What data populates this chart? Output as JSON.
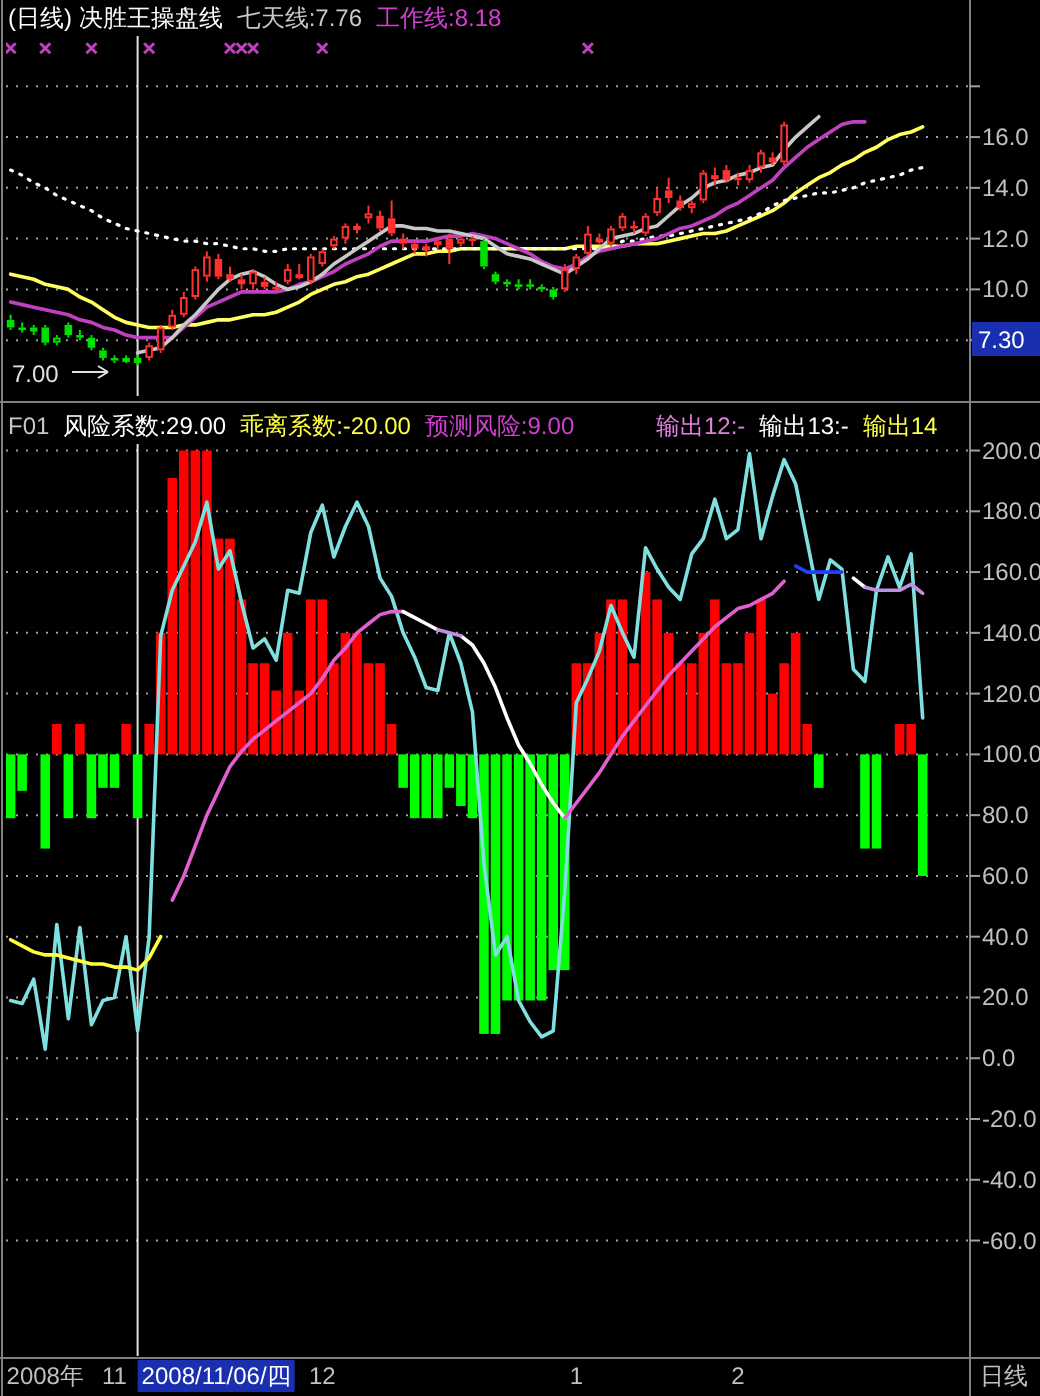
{
  "chart_data": [
    {
      "type": "candlestick",
      "title": "(日线) 决胜王操盘线",
      "annotations": [
        "七天线:7.76",
        "工作线:8.18",
        "7.00",
        "7.30"
      ],
      "categories": [
        null,
        null,
        null,
        null,
        null,
        null,
        null,
        null,
        null,
        null,
        null,
        null,
        null,
        null,
        null,
        null,
        null,
        null,
        null,
        null,
        null,
        null,
        null,
        null,
        null,
        null,
        null,
        null,
        null,
        null,
        null,
        null,
        null,
        null,
        null,
        null,
        null,
        null,
        null,
        null,
        null,
        null,
        null,
        null,
        null,
        null,
        null,
        null,
        null,
        null,
        null,
        null,
        null,
        null,
        null,
        null,
        null,
        null,
        null,
        null,
        null,
        null,
        null,
        null,
        null,
        null,
        null,
        null,
        null,
        null,
        null,
        null,
        null,
        null,
        null,
        null,
        null,
        null,
        null,
        null
      ],
      "ohlc": [
        [
          8.8,
          9.0,
          8.4,
          8.5
        ],
        [
          8.5,
          8.7,
          8.3,
          8.4
        ],
        [
          8.4,
          8.6,
          8.2,
          8.5
        ],
        [
          8.5,
          8.6,
          7.8,
          7.9
        ],
        [
          7.9,
          8.2,
          7.8,
          8.1
        ],
        [
          8.6,
          8.7,
          8.1,
          8.2
        ],
        [
          8.2,
          8.4,
          8.0,
          8.1
        ],
        [
          8.1,
          8.2,
          7.6,
          7.7
        ],
        [
          7.6,
          7.7,
          7.2,
          7.3
        ],
        [
          7.3,
          7.4,
          7.1,
          7.2
        ],
        [
          7.2,
          7.4,
          7.1,
          7.3
        ],
        [
          7.3,
          7.4,
          7.0,
          7.1
        ],
        [
          7.3,
          7.9,
          7.2,
          7.8
        ],
        [
          7.6,
          8.6,
          7.5,
          8.5
        ],
        [
          8.5,
          9.2,
          8.4,
          9.0
        ],
        [
          9.0,
          9.9,
          8.9,
          9.7
        ],
        [
          9.7,
          10.9,
          9.6,
          10.8
        ],
        [
          10.5,
          11.5,
          10.3,
          11.3
        ],
        [
          11.2,
          11.4,
          10.4,
          10.5
        ],
        [
          10.6,
          10.9,
          10.3,
          10.4
        ],
        [
          10.4,
          10.6,
          10.0,
          10.2
        ],
        [
          10.2,
          10.8,
          10.0,
          10.7
        ],
        [
          10.3,
          10.5,
          10.0,
          10.1
        ],
        [
          10.1,
          10.3,
          9.9,
          10.0
        ],
        [
          10.3,
          11.0,
          10.2,
          10.8
        ],
        [
          10.5,
          11.0,
          10.4,
          10.6
        ],
        [
          10.3,
          11.4,
          10.2,
          11.3
        ],
        [
          11.0,
          11.6,
          10.9,
          11.5
        ],
        [
          11.7,
          12.1,
          11.6,
          12.0
        ],
        [
          12.0,
          12.6,
          11.8,
          12.5
        ],
        [
          12.4,
          12.6,
          12.2,
          12.5
        ],
        [
          12.8,
          13.3,
          12.6,
          13.0
        ],
        [
          12.9,
          13.1,
          12.3,
          12.4
        ],
        [
          12.8,
          13.5,
          12.1,
          12.2
        ],
        [
          12.0,
          12.2,
          11.6,
          11.8
        ],
        [
          11.8,
          11.9,
          11.4,
          11.6
        ],
        [
          11.6,
          11.8,
          11.3,
          11.7
        ],
        [
          11.8,
          12.0,
          11.6,
          11.9
        ],
        [
          12.0,
          12.2,
          11.0,
          11.6
        ],
        [
          11.8,
          12.1,
          11.7,
          12.0
        ],
        [
          12.0,
          12.1,
          11.7,
          11.9
        ],
        [
          11.9,
          12.0,
          10.8,
          10.9
        ],
        [
          10.6,
          10.7,
          10.2,
          10.3
        ],
        [
          10.3,
          10.4,
          10.1,
          10.2
        ],
        [
          10.2,
          10.4,
          10.0,
          10.1
        ],
        [
          10.2,
          10.4,
          10.0,
          10.1
        ],
        [
          10.1,
          10.2,
          9.9,
          10.0
        ],
        [
          10.0,
          10.1,
          9.6,
          9.7
        ],
        [
          10.0,
          11.0,
          9.9,
          10.8
        ],
        [
          10.8,
          11.4,
          10.6,
          11.3
        ],
        [
          11.4,
          12.5,
          11.3,
          12.2
        ],
        [
          11.9,
          12.2,
          11.8,
          12.0
        ],
        [
          11.8,
          12.5,
          11.7,
          12.4
        ],
        [
          12.4,
          13.0,
          12.3,
          12.9
        ],
        [
          12.5,
          12.7,
          12.2,
          12.4
        ],
        [
          12.2,
          13.0,
          12.1,
          12.9
        ],
        [
          13.0,
          14.0,
          12.9,
          13.6
        ],
        [
          13.9,
          14.4,
          13.4,
          13.6
        ],
        [
          13.5,
          13.7,
          13.1,
          13.2
        ],
        [
          13.2,
          13.5,
          13.0,
          13.4
        ],
        [
          13.5,
          14.7,
          13.4,
          14.6
        ],
        [
          14.4,
          14.8,
          14.1,
          14.5
        ],
        [
          14.7,
          14.9,
          14.2,
          14.3
        ],
        [
          14.4,
          14.6,
          14.1,
          14.3
        ],
        [
          14.3,
          14.9,
          14.2,
          14.7
        ],
        [
          14.8,
          15.5,
          14.6,
          15.4
        ],
        [
          15.2,
          15.4,
          14.9,
          15.0
        ],
        [
          15.0,
          16.6,
          14.9,
          16.5
        ],
        null,
        null,
        null,
        null,
        null,
        null,
        null,
        null,
        null,
        null,
        null,
        null
      ],
      "colors": [
        "#00e000",
        "#00e000",
        "#00e000",
        "#00e000",
        "#00e000",
        "#00e000",
        "#00e000",
        "#00e000",
        "#00e000",
        "#00e000",
        "#00e000",
        "#00e000",
        "#ff3030",
        "#ff3030",
        "#ff3030",
        "#ff3030",
        "#ff3030",
        "#ff3030",
        "#ff3030",
        "#ff3030",
        "#ff3030",
        "#ff3030",
        "#ff3030",
        "#ff3030",
        "#ff3030",
        "#ff3030",
        "#ff3030",
        "#ff3030",
        "#ff3030",
        "#ff3030",
        "#ff3030",
        "#ff3030",
        "#ff3030",
        "#ff3030",
        "#ff3030",
        "#ff3030",
        "#ff3030",
        "#ff3030",
        "#ff3030",
        "#ff3030",
        "#ff3030",
        "#00e000",
        "#00e000",
        "#00e000",
        "#00e000",
        "#00e000",
        "#00e000",
        "#00e000",
        "#ff3030",
        "#ff3030",
        "#ff3030",
        "#ff3030",
        "#ff3030",
        "#ff3030",
        "#ff3030",
        "#ff3030",
        "#ff3030",
        "#ff3030",
        "#ff3030",
        "#ff3030",
        "#ff3030",
        "#ff3030",
        "#ff3030",
        "#ff3030",
        "#ff3030",
        "#ff3030",
        "#ff3030",
        "#ff3030",
        null,
        null,
        null,
        null,
        null,
        null,
        null,
        null,
        null,
        null,
        null,
        null
      ],
      "series": [
        {
          "type": "line",
          "color": "#ffff60",
          "values": [
            10.6,
            10.5,
            10.4,
            10.2,
            10.1,
            10.0,
            9.7,
            9.5,
            9.2,
            8.9,
            8.7,
            8.6,
            8.5,
            8.5,
            8.5,
            8.6,
            8.6,
            8.7,
            8.8,
            8.8,
            8.9,
            9.0,
            9.0,
            9.1,
            9.3,
            9.5,
            9.8,
            10.0,
            10.2,
            10.3,
            10.5,
            10.6,
            10.8,
            11.0,
            11.2,
            11.4,
            11.4,
            11.5,
            11.5,
            11.6,
            11.6,
            11.6,
            11.6,
            11.6,
            11.6,
            11.6,
            11.6,
            11.6,
            11.6,
            11.7,
            11.7,
            11.7,
            11.7,
            11.7,
            11.8,
            11.8,
            11.8,
            11.9,
            12.0,
            12.1,
            12.2,
            12.2,
            12.3,
            12.5,
            12.7,
            12.9,
            13.1,
            13.4,
            13.8,
            14.1,
            14.4,
            14.6,
            14.9,
            15.1,
            15.4,
            15.6,
            15.9,
            16.1,
            16.2,
            16.4
          ]
        },
        {
          "type": "line",
          "color": "#ffffff",
          "line_style": "dotted",
          "values": [
            14.7,
            14.5,
            14.2,
            14.0,
            13.7,
            13.5,
            13.3,
            13.1,
            12.8,
            12.6,
            12.4,
            12.3,
            12.2,
            12.1,
            12.0,
            11.9,
            11.9,
            11.8,
            11.8,
            11.7,
            11.6,
            11.6,
            11.5,
            11.5,
            11.6,
            11.6,
            11.6,
            11.6,
            11.6,
            11.6,
            11.6,
            11.6,
            11.6,
            11.6,
            11.6,
            11.6,
            11.6,
            11.6,
            11.6,
            11.6,
            11.6,
            11.6,
            11.6,
            11.6,
            11.6,
            11.6,
            11.6,
            11.6,
            11.6,
            11.6,
            11.6,
            11.6,
            11.6,
            11.9,
            11.9,
            12.0,
            12.1,
            12.1,
            12.2,
            12.3,
            12.4,
            12.5,
            12.6,
            12.7,
            12.8,
            13.0,
            13.3,
            13.5,
            13.6,
            13.7,
            13.8,
            13.8,
            13.9,
            14.0,
            14.2,
            14.3,
            14.4,
            14.5,
            14.7,
            14.8
          ]
        },
        {
          "type": "line",
          "color": "#c040c0",
          "values": [
            9.5,
            9.4,
            9.3,
            9.2,
            9.1,
            9.0,
            8.8,
            8.7,
            8.5,
            8.4,
            8.2,
            8.1,
            8.1,
            8.1,
            8.1,
            8.5,
            8.9,
            9.3,
            9.5,
            9.7,
            9.9,
            9.9,
            9.9,
            9.9,
            10.0,
            10.2,
            10.3,
            10.5,
            10.7,
            11.0,
            11.2,
            11.4,
            11.7,
            11.9,
            11.9,
            11.9,
            11.9,
            12.0,
            12.1,
            12.1,
            12.2,
            12.1,
            12.0,
            11.8,
            11.6,
            11.4,
            11.1,
            10.9,
            10.8,
            11.0,
            11.3,
            11.5,
            11.6,
            11.7,
            11.8,
            11.9,
            12.0,
            12.2,
            12.4,
            12.5,
            12.7,
            12.9,
            13.2,
            13.4,
            13.7,
            14.0,
            14.3,
            14.8,
            15.2,
            15.6,
            15.9,
            16.2,
            16.5,
            16.6,
            16.6,
            null,
            null,
            null,
            null,
            null
          ]
        },
        {
          "type": "line",
          "color": "#c8c8c8",
          "values": [
            null,
            null,
            null,
            null,
            null,
            null,
            null,
            null,
            null,
            null,
            null,
            7.5,
            7.6,
            7.7,
            8.1,
            8.6,
            9.0,
            9.5,
            10.0,
            10.4,
            10.6,
            10.7,
            10.5,
            10.2,
            10.0,
            10.1,
            10.3,
            10.6,
            11.0,
            11.3,
            11.6,
            11.9,
            12.2,
            12.5,
            12.5,
            12.4,
            12.4,
            12.3,
            12.3,
            12.2,
            12.1,
            12.0,
            11.7,
            11.4,
            11.3,
            11.2,
            11.0,
            10.8,
            10.6,
            10.9,
            11.2,
            11.6,
            12.0,
            12.1,
            12.2,
            12.4,
            12.5,
            12.9,
            13.3,
            13.6,
            14.0,
            14.2,
            14.3,
            14.5,
            14.6,
            14.8,
            14.9,
            15.5,
            16.0,
            16.4,
            16.8,
            null,
            null,
            null,
            null,
            null,
            null,
            null,
            null,
            null
          ]
        },
        {
          "type": "scatter",
          "marker": "cross",
          "color": "#c040c0",
          "values": [
            19.5,
            null,
            null,
            19.5,
            null,
            null,
            null,
            19.5,
            null,
            null,
            null,
            null,
            19.5,
            null,
            null,
            null,
            null,
            null,
            null,
            19.5,
            19.5,
            19.5,
            null,
            null,
            null,
            null,
            null,
            19.5,
            null,
            null,
            null,
            null,
            null,
            null,
            null,
            null,
            null,
            null,
            null,
            null,
            null,
            null,
            null,
            null,
            null,
            null,
            null,
            null,
            null,
            null,
            19.5,
            null,
            null,
            null,
            null,
            null,
            null,
            null,
            null,
            null,
            null,
            null,
            null,
            null,
            null,
            null,
            null,
            null,
            null,
            null,
            null,
            null,
            null,
            null,
            null,
            null,
            null,
            null,
            null,
            null
          ]
        }
      ],
      "ylim": [
        5.8,
        21.4
      ],
      "yticks": [
        {
          "value": 8,
          "label": null
        },
        {
          "value": 10,
          "label": "10.0"
        },
        {
          "value": 12,
          "label": "12.0"
        },
        {
          "value": 14,
          "label": "14.0"
        },
        {
          "value": 16,
          "label": "16.0"
        },
        {
          "value": 18,
          "label": null
        }
      ],
      "grid": "y",
      "tick_labels": "y"
    },
    {
      "type": "bar",
      "annotations": [
        "F01",
        "风险系数:29.00",
        "乖离系数:-20.00",
        "预测风险:9.00",
        "输出12:-",
        "输出13:-",
        "输出14",
        "2008/11/06/四"
      ],
      "xlabel": "日线",
      "categories": [
        null,
        null,
        null,
        "2008年",
        null,
        null,
        null,
        null,
        null,
        "11",
        null,
        null,
        null,
        null,
        null,
        null,
        null,
        null,
        null,
        null,
        null,
        null,
        null,
        null,
        null,
        null,
        null,
        "12",
        null,
        null,
        null,
        null,
        null,
        null,
        null,
        null,
        null,
        null,
        null,
        null,
        null,
        null,
        null,
        null,
        null,
        null,
        null,
        null,
        null,
        "1",
        null,
        null,
        null,
        null,
        null,
        null,
        null,
        null,
        null,
        null,
        null,
        null,
        null,
        "2",
        null,
        null,
        null,
        null,
        null,
        null,
        null,
        null,
        null,
        null,
        null,
        null,
        null,
        null,
        null,
        null
      ],
      "values": [
        -21,
        -12,
        null,
        -31,
        10,
        -21,
        10,
        -21,
        -11,
        -11,
        10,
        -21,
        10,
        40,
        91,
        100,
        100,
        100,
        71,
        71,
        51,
        30,
        30,
        21,
        40,
        21,
        51,
        51,
        30,
        40,
        40,
        30,
        30,
        10,
        -11,
        -21,
        -21,
        -21,
        -11,
        -17,
        -21,
        -92,
        -92,
        -81,
        -81,
        -81,
        -81,
        -71,
        -71,
        30,
        30,
        40,
        51,
        51,
        30,
        60,
        51,
        40,
        30,
        30,
        40,
        51,
        30,
        30,
        40,
        51,
        20,
        30,
        40,
        10,
        -11,
        null,
        null,
        null,
        -31,
        -31,
        null,
        10,
        10,
        -40
      ],
      "base": [
        100,
        100,
        null,
        100,
        100,
        100,
        100,
        100,
        100,
        100,
        100,
        100,
        100,
        100,
        100,
        100,
        100,
        100,
        100,
        100,
        100,
        100,
        100,
        100,
        100,
        100,
        100,
        100,
        100,
        100,
        100,
        100,
        100,
        100,
        100,
        100,
        100,
        100,
        100,
        100,
        100,
        100,
        100,
        100,
        100,
        100,
        100,
        100,
        100,
        100,
        100,
        100,
        100,
        100,
        100,
        100,
        100,
        100,
        100,
        100,
        100,
        100,
        100,
        100,
        100,
        100,
        100,
        100,
        100,
        100,
        100,
        null,
        null,
        null,
        100,
        100,
        null,
        100,
        100,
        100
      ],
      "colors": [
        "#00ff00",
        "#00ff00",
        null,
        "#00ff00",
        "#ff0000",
        "#00ff00",
        "#ff0000",
        "#00ff00",
        "#00ff00",
        "#00ff00",
        "#ff0000",
        "#00ff00",
        "#ff0000",
        "#ff0000",
        "#ff0000",
        "#ff0000",
        "#ff0000",
        "#ff0000",
        "#ff0000",
        "#ff0000",
        "#ff0000",
        "#ff0000",
        "#ff0000",
        "#ff0000",
        "#ff0000",
        "#ff0000",
        "#ff0000",
        "#ff0000",
        "#ff0000",
        "#ff0000",
        "#ff0000",
        "#ff0000",
        "#ff0000",
        "#ff0000",
        "#00ff00",
        "#00ff00",
        "#00ff00",
        "#00ff00",
        "#00ff00",
        "#00ff00",
        "#00ff00",
        "#00ff00",
        "#00ff00",
        "#00ff00",
        "#00ff00",
        "#00ff00",
        "#00ff00",
        "#00ff00",
        "#00ff00",
        "#ff0000",
        "#ff0000",
        "#ff0000",
        "#ff0000",
        "#ff0000",
        "#ff0000",
        "#ff0000",
        "#ff0000",
        "#ff0000",
        "#ff0000",
        "#ff0000",
        "#ff0000",
        "#ff0000",
        "#ff0000",
        "#ff0000",
        "#ff0000",
        "#ff0000",
        "#ff0000",
        "#ff0000",
        "#ff0000",
        "#ff0000",
        "#00ff00",
        null,
        null,
        null,
        "#00ff00",
        "#00ff00",
        null,
        "#ff0000",
        "#ff0000",
        "#00ff00"
      ],
      "series": [
        {
          "type": "line",
          "color": "#80e0e0",
          "values": [
            19,
            18,
            26,
            3,
            44,
            13,
            43,
            11,
            19,
            20,
            40,
            9,
            40,
            139,
            154,
            162,
            170,
            183,
            161,
            167,
            150,
            135,
            138,
            131,
            154,
            153,
            173,
            182,
            165,
            175,
            183,
            175,
            158,
            152,
            140,
            132,
            122,
            121,
            140,
            130,
            114,
            64,
            34,
            40,
            19,
            12,
            7,
            9,
            55,
            117,
            125,
            134,
            149,
            140,
            132,
            168,
            161,
            155,
            151,
            166,
            171,
            184,
            171,
            174,
            199,
            171,
            185,
            197,
            189,
            170,
            151,
            164,
            161,
            128,
            124,
            154,
            165,
            155,
            166,
            112
          ]
        },
        {
          "type": "line",
          "color": "#ffff40",
          "values": [
            39,
            37,
            35,
            34,
            34,
            33,
            32,
            31,
            31,
            30,
            30,
            29,
            33,
            40,
            null,
            null,
            null,
            null,
            null,
            null,
            null,
            null,
            null,
            null,
            null,
            null,
            null,
            null,
            null,
            null,
            null,
            null,
            null,
            null,
            null,
            null,
            null,
            null,
            null,
            null,
            null,
            null,
            null,
            null,
            null,
            null,
            null,
            null,
            null,
            null,
            null,
            null,
            null,
            null,
            null,
            null,
            null,
            null,
            null,
            null,
            null,
            null,
            null,
            null,
            null,
            null,
            null,
            null,
            null,
            null,
            null,
            null,
            null,
            null,
            null,
            null,
            null,
            null,
            null,
            null
          ]
        },
        {
          "type": "line",
          "color": "#e060d0",
          "values": [
            null,
            null,
            null,
            null,
            null,
            null,
            null,
            null,
            null,
            null,
            null,
            null,
            null,
            null,
            52,
            60,
            70,
            80,
            88,
            96,
            101,
            105,
            108,
            111,
            114,
            117,
            120,
            125,
            131,
            135,
            140,
            143,
            146,
            147,
            147,
            null,
            null,
            null,
            null,
            null,
            null,
            null,
            null,
            null,
            null,
            null,
            null,
            null,
            null,
            null,
            null,
            null,
            null,
            null,
            null,
            null,
            null,
            null,
            null,
            null,
            null,
            null,
            null,
            null,
            null,
            null,
            null,
            null,
            null,
            null,
            null,
            null,
            null,
            null,
            null,
            null,
            null,
            null,
            null,
            null
          ]
        },
        {
          "type": "line",
          "color": "#ffffff",
          "values": [
            null,
            null,
            null,
            null,
            null,
            null,
            null,
            null,
            null,
            null,
            null,
            null,
            null,
            null,
            null,
            null,
            null,
            null,
            null,
            null,
            null,
            null,
            null,
            null,
            null,
            null,
            null,
            null,
            null,
            null,
            null,
            null,
            null,
            null,
            147,
            145,
            143,
            141,
            null,
            null,
            null,
            null,
            null,
            null,
            null,
            null,
            null,
            null,
            null,
            null,
            null,
            null,
            null,
            null,
            null,
            null,
            null,
            null,
            null,
            null,
            null,
            null,
            null,
            null,
            null,
            null,
            null,
            null,
            null,
            null,
            null,
            null,
            null,
            null,
            null,
            null,
            null,
            null,
            null,
            null
          ]
        },
        {
          "type": "line",
          "color": "#ffffff",
          "values": [
            null,
            null,
            null,
            null,
            null,
            null,
            null,
            null,
            null,
            null,
            null,
            null,
            null,
            null,
            null,
            null,
            null,
            null,
            null,
            null,
            null,
            null,
            null,
            null,
            null,
            null,
            null,
            null,
            null,
            null,
            null,
            null,
            null,
            null,
            null,
            null,
            null,
            null,
            null,
            139,
            136,
            130,
            122,
            112,
            103,
            97,
            90,
            84,
            79,
            null,
            null,
            null,
            null,
            null,
            null,
            null,
            null,
            null,
            null,
            null,
            null,
            null,
            null,
            null,
            null,
            null,
            null,
            null,
            null,
            null,
            null,
            null,
            null,
            null,
            null,
            null,
            null,
            null,
            null,
            null
          ]
        },
        {
          "type": "line",
          "color": "#e060d0",
          "values": [
            null,
            null,
            null,
            null,
            null,
            null,
            null,
            null,
            null,
            null,
            null,
            null,
            null,
            null,
            null,
            null,
            null,
            null,
            null,
            null,
            null,
            null,
            null,
            null,
            null,
            null,
            null,
            null,
            null,
            null,
            null,
            null,
            null,
            null,
            null,
            null,
            null,
            null,
            null,
            null,
            null,
            null,
            null,
            null,
            null,
            null,
            null,
            null,
            79,
            84,
            89,
            94,
            100,
            106,
            111,
            116,
            121,
            126,
            130,
            134,
            138,
            142,
            145,
            148,
            149,
            151,
            153,
            157,
            null,
            null,
            null,
            null,
            null,
            null,
            null,
            null,
            null,
            null,
            null,
            null
          ]
        },
        {
          "type": "line",
          "color": "#2040ff",
          "values": [
            null,
            null,
            null,
            null,
            null,
            null,
            null,
            null,
            null,
            null,
            null,
            null,
            null,
            null,
            null,
            null,
            null,
            null,
            null,
            null,
            null,
            null,
            null,
            null,
            null,
            null,
            null,
            null,
            null,
            null,
            null,
            null,
            null,
            null,
            null,
            null,
            null,
            null,
            null,
            null,
            null,
            null,
            null,
            null,
            null,
            null,
            null,
            null,
            null,
            null,
            null,
            null,
            null,
            null,
            null,
            null,
            null,
            null,
            null,
            null,
            null,
            null,
            null,
            null,
            null,
            null,
            null,
            null,
            162,
            160,
            160,
            160,
            160,
            null,
            null,
            null,
            null,
            null,
            null,
            null
          ]
        },
        {
          "type": "line",
          "color": "#ffffff",
          "values": [
            null,
            null,
            null,
            null,
            null,
            null,
            null,
            null,
            null,
            null,
            null,
            null,
            null,
            null,
            null,
            null,
            null,
            null,
            null,
            null,
            null,
            null,
            null,
            null,
            null,
            null,
            null,
            null,
            null,
            null,
            null,
            null,
            null,
            null,
            null,
            null,
            null,
            null,
            null,
            null,
            null,
            null,
            null,
            null,
            null,
            null,
            null,
            null,
            null,
            null,
            null,
            null,
            null,
            null,
            null,
            null,
            null,
            null,
            null,
            null,
            null,
            null,
            null,
            null,
            null,
            null,
            null,
            null,
            null,
            null,
            null,
            null,
            null,
            158,
            155,
            null,
            null,
            null,
            null,
            null
          ]
        },
        {
          "type": "line",
          "color": "#c090e0",
          "values": [
            null,
            null,
            null,
            null,
            null,
            null,
            null,
            null,
            null,
            null,
            null,
            null,
            null,
            null,
            null,
            null,
            null,
            null,
            null,
            null,
            null,
            null,
            null,
            null,
            null,
            null,
            null,
            null,
            null,
            null,
            null,
            null,
            null,
            null,
            null,
            null,
            null,
            null,
            null,
            null,
            null,
            null,
            null,
            null,
            null,
            null,
            null,
            null,
            null,
            null,
            null,
            null,
            null,
            null,
            null,
            null,
            null,
            null,
            null,
            null,
            null,
            null,
            null,
            null,
            null,
            null,
            null,
            null,
            null,
            null,
            null,
            null,
            null,
            null,
            155,
            154,
            154,
            154,
            156,
            153
          ]
        },
        {
          "type": "line",
          "color": "#c090e0",
          "values": [
            null,
            null,
            null,
            null,
            null,
            null,
            null,
            null,
            null,
            null,
            null,
            null,
            null,
            null,
            null,
            null,
            null,
            null,
            null,
            null,
            null,
            null,
            null,
            null,
            null,
            null,
            null,
            null,
            null,
            null,
            null,
            null,
            null,
            null,
            null,
            null,
            null,
            141,
            140,
            139,
            null,
            null,
            null,
            null,
            null,
            null,
            null,
            null,
            null,
            null,
            null,
            null,
            null,
            null,
            null,
            null,
            null,
            null,
            null,
            null,
            null,
            null,
            null,
            null,
            null,
            null,
            null,
            null,
            null,
            null,
            null,
            null,
            null,
            null,
            null,
            null,
            null,
            null,
            null,
            null
          ]
        }
      ],
      "ylim": [
        -98,
        214
      ],
      "yticks": [
        {
          "value": -60,
          "label": "-60.0"
        },
        {
          "value": -40,
          "label": "-40.0"
        },
        {
          "value": -20,
          "label": "-20.0"
        },
        {
          "value": 0,
          "label": "0.0"
        },
        {
          "value": 20,
          "label": "20.0"
        },
        {
          "value": 40,
          "label": "40.0"
        },
        {
          "value": 60,
          "label": "60.0"
        },
        {
          "value": 80,
          "label": "80.0"
        },
        {
          "value": 100,
          "label": "100.0"
        },
        {
          "value": 120,
          "label": "120.0"
        },
        {
          "value": 140,
          "label": "140.0"
        },
        {
          "value": 160,
          "label": "160.0"
        },
        {
          "value": 180,
          "label": "180.0"
        },
        {
          "value": 200,
          "label": "200.0"
        }
      ],
      "grid": "y"
    }
  ]
}
